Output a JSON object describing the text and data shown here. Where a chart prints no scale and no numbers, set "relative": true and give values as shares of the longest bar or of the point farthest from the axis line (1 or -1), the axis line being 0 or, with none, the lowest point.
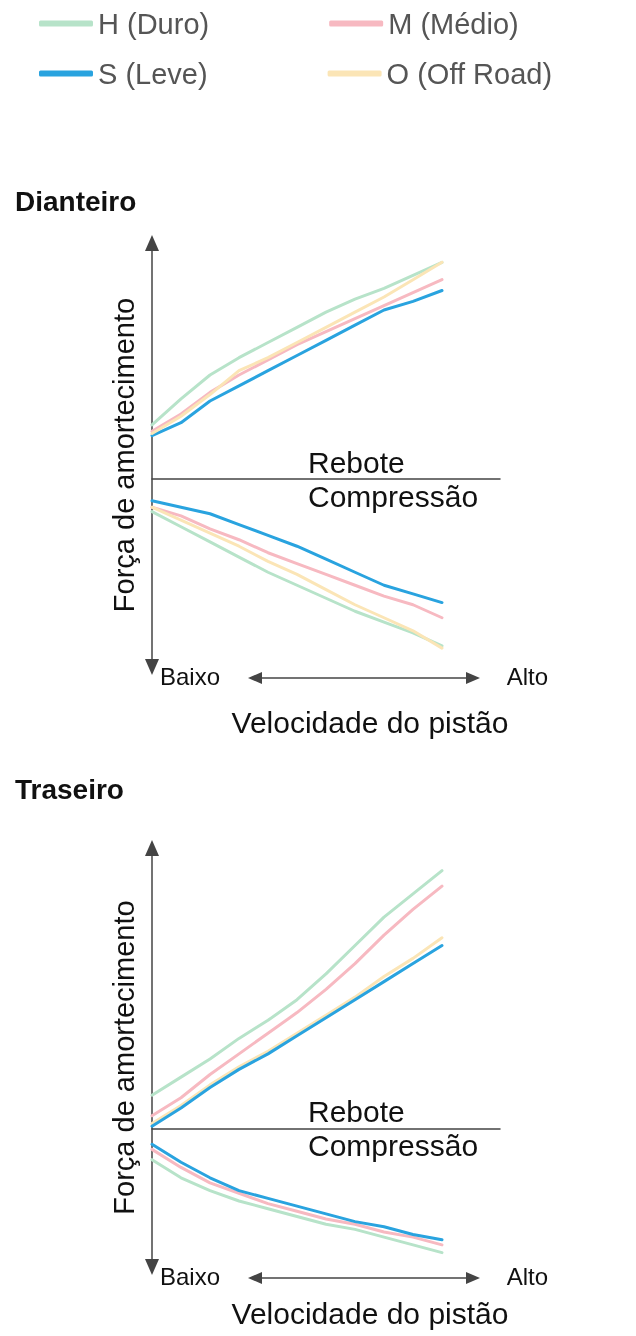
{
  "chart_data": [
    {
      "type": "line",
      "title": "Dianteiro",
      "xlabel": "Velocidade do pistão",
      "ylabel": "Força de amortecimento",
      "relative": true,
      "marker": "none",
      "legend": "top",
      "categories": [
        null,
        null,
        null,
        null,
        null,
        null,
        null,
        null,
        null,
        null,
        null,
        null,
        null
      ],
      "annotations": [
        "Rebote",
        "Compressão",
        "Baixo",
        "Alto"
      ],
      "series": [
        {
          "name": "H (Duro)",
          "color": "#b7e3c9",
          "values": [
            0.25,
            0.37,
            0.48,
            0.56,
            0.63,
            0.7,
            0.77,
            0.83,
            0.88,
            0.94,
            1.0,
            null,
            null
          ]
        },
        {
          "name": "M (Médio)",
          "color": "#f7b9c1",
          "values": [
            0.22,
            0.3,
            0.4,
            0.48,
            0.55,
            0.62,
            0.68,
            0.74,
            0.8,
            0.86,
            0.92,
            null,
            null
          ]
        },
        {
          "name": "S (Leve)",
          "color": "#29a3df",
          "values": [
            0.2,
            0.26,
            0.36,
            0.43,
            0.5,
            0.57,
            0.64,
            0.71,
            0.78,
            0.82,
            0.87,
            null,
            null
          ]
        },
        {
          "name": "O (Off Road)",
          "color": "#fbe5b6",
          "values": [
            0.21,
            0.29,
            0.39,
            0.5,
            0.56,
            0.63,
            0.7,
            0.77,
            0.84,
            0.92,
            1.0,
            null,
            null
          ]
        },
        {
          "color": "#b7e3c9",
          "values": [
            -0.15,
            -0.22,
            -0.29,
            -0.36,
            -0.43,
            -0.49,
            -0.55,
            -0.61,
            -0.66,
            -0.71,
            -0.77,
            null,
            null
          ]
        },
        {
          "color": "#f7b9c1",
          "values": [
            -0.13,
            -0.17,
            -0.23,
            -0.28,
            -0.34,
            -0.39,
            -0.44,
            -0.49,
            -0.54,
            -0.58,
            -0.64,
            null,
            null
          ]
        },
        {
          "color": "#fbe5b6",
          "values": [
            -0.13,
            -0.19,
            -0.25,
            -0.31,
            -0.38,
            -0.44,
            -0.51,
            -0.58,
            -0.64,
            -0.7,
            -0.78,
            null,
            null
          ]
        },
        {
          "color": "#29a3df",
          "values": [
            -0.1,
            -0.13,
            -0.16,
            -0.21,
            -0.26,
            -0.31,
            -0.37,
            -0.43,
            -0.49,
            -0.53,
            -0.57,
            null,
            null
          ]
        }
      ]
    },
    {
      "type": "line",
      "title": "Traseiro",
      "xlabel": "Velocidade do pistão",
      "ylabel": "Força de amortecimento",
      "relative": true,
      "marker": "none",
      "categories": [
        null,
        null,
        null,
        null,
        null,
        null,
        null,
        null,
        null,
        null,
        null,
        null,
        null
      ],
      "annotations": [
        "Rebote",
        "Compressão",
        "Baixo",
        "Alto"
      ],
      "series": [
        {
          "color": "#b7e3c9",
          "values": [
            0.13,
            0.2,
            0.27,
            0.35,
            0.42,
            0.5,
            0.6,
            0.71,
            0.82,
            0.91,
            1.0,
            null,
            null
          ]
        },
        {
          "color": "#f7b9c1",
          "values": [
            0.05,
            0.12,
            0.21,
            0.29,
            0.37,
            0.45,
            0.54,
            0.64,
            0.75,
            0.85,
            0.94,
            null,
            null
          ]
        },
        {
          "color": "#fbe5b6",
          "values": [
            0.02,
            0.09,
            0.17,
            0.24,
            0.3,
            0.37,
            0.44,
            0.51,
            0.59,
            0.66,
            0.74,
            null,
            null
          ]
        },
        {
          "color": "#29a3df",
          "values": [
            0.01,
            0.08,
            0.16,
            0.23,
            0.29,
            0.36,
            0.43,
            0.5,
            0.57,
            0.64,
            0.71,
            null,
            null
          ]
        },
        {
          "color": "#b7e3c9",
          "values": [
            -0.12,
            -0.19,
            -0.24,
            -0.28,
            -0.31,
            -0.34,
            -0.37,
            -0.39,
            -0.42,
            -0.45,
            -0.48,
            null,
            null
          ]
        },
        {
          "color": "#f7b9c1",
          "values": [
            -0.08,
            -0.15,
            -0.21,
            -0.25,
            -0.29,
            -0.32,
            -0.35,
            -0.37,
            -0.4,
            -0.42,
            -0.45,
            null,
            null
          ]
        },
        {
          "color": "#29a3df",
          "values": [
            -0.06,
            -0.13,
            -0.19,
            -0.24,
            -0.27,
            -0.3,
            -0.33,
            -0.36,
            -0.38,
            -0.41,
            -0.43,
            null,
            null
          ]
        }
      ]
    }
  ]
}
